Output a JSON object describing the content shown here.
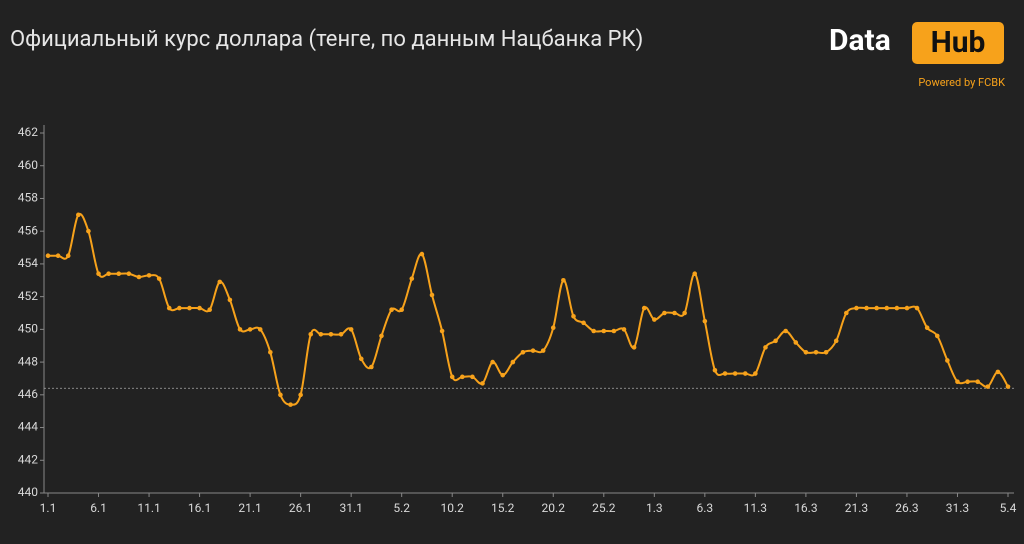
{
  "chart_data": {
    "type": "line",
    "title": "Официальный курс доллара (тенге, по данным Нацбанка РК)",
    "logo": {
      "left": "Data",
      "right": "Hub",
      "tagline": "Powered by FCBK"
    },
    "categories": [
      "1.1",
      null,
      null,
      null,
      null,
      "6.1",
      null,
      null,
      null,
      null,
      "11.1",
      null,
      null,
      null,
      null,
      "16.1",
      null,
      null,
      null,
      null,
      "21.1",
      null,
      null,
      null,
      null,
      "26.1",
      null,
      null,
      null,
      null,
      "31.1",
      null,
      null,
      null,
      null,
      "5.2",
      null,
      null,
      null,
      null,
      "10.2",
      null,
      null,
      null,
      null,
      "15.2",
      null,
      null,
      null,
      null,
      "20.2",
      null,
      null,
      null,
      null,
      "25.2",
      null,
      null,
      null,
      null,
      "1.3",
      null,
      null,
      null,
      null,
      "6.3",
      null,
      null,
      null,
      null,
      "11.3",
      null,
      null,
      null,
      null,
      "16.3",
      null,
      null,
      null,
      null,
      "21.3",
      null,
      null,
      null,
      null,
      "26.3",
      null,
      null,
      null,
      null,
      "31.3",
      null,
      null,
      null,
      null,
      "5.4"
    ],
    "values": [
      454.5,
      454.5,
      454.5,
      457.0,
      456.0,
      453.4,
      453.4,
      453.4,
      453.4,
      453.2,
      453.3,
      453.1,
      451.3,
      451.3,
      451.3,
      451.3,
      451.2,
      452.9,
      451.8,
      450.0,
      450.0,
      450.0,
      448.6,
      446.0,
      445.4,
      446.0,
      449.7,
      449.7,
      449.7,
      449.7,
      450.0,
      448.2,
      447.7,
      449.6,
      451.2,
      451.2,
      453.1,
      454.6,
      452.1,
      449.9,
      447.1,
      447.1,
      447.1,
      446.7,
      448.0,
      447.2,
      448.0,
      448.6,
      448.7,
      448.7,
      450.1,
      453.0,
      450.8,
      450.4,
      449.9,
      449.9,
      449.9,
      450.0,
      448.9,
      451.3,
      450.6,
      451.0,
      451.0,
      451.0,
      453.4,
      450.5,
      447.5,
      447.3,
      447.3,
      447.3,
      447.3,
      448.9,
      449.3,
      449.9,
      449.2,
      448.6,
      448.6,
      448.6,
      449.3,
      451.0,
      451.3,
      451.3,
      451.3,
      451.3,
      451.3,
      451.3,
      451.3,
      450.1,
      449.6,
      448.1,
      446.8,
      446.8,
      446.8,
      446.5,
      447.4,
      446.5
    ],
    "color": "#f7a21b",
    "reference_line": 446.4,
    "ylim": [
      440,
      462
    ],
    "yticks": [
      440,
      442,
      444,
      446,
      448,
      450,
      452,
      454,
      456,
      458,
      460,
      462
    ]
  }
}
